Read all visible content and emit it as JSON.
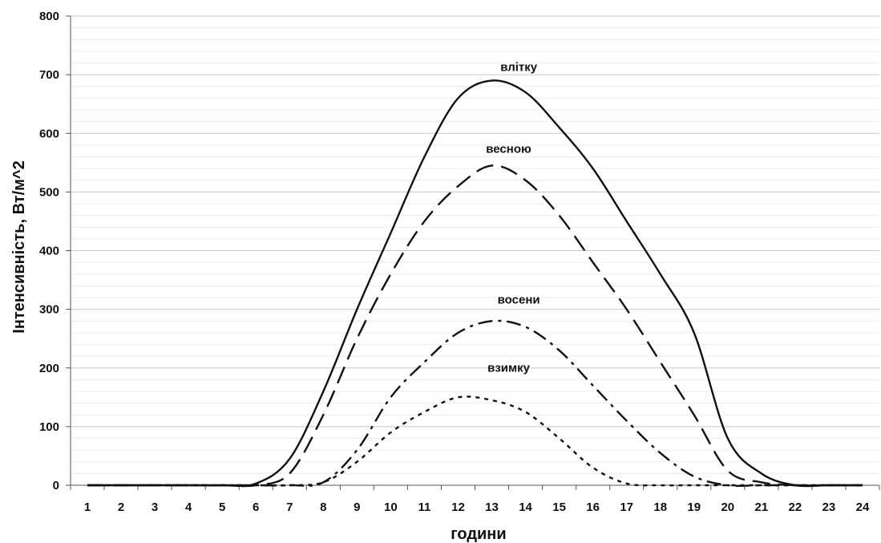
{
  "chart_data": {
    "type": "line",
    "title": "",
    "xlabel": "години",
    "ylabel": "Інтенсивність, Вт/м^2",
    "xlim": [
      0.5,
      24.5
    ],
    "ylim": [
      0,
      800
    ],
    "x_ticks": [
      "1",
      "2",
      "3",
      "4",
      "5",
      "6",
      "7",
      "8",
      "9",
      "10",
      "11",
      "12",
      "13",
      "14",
      "15",
      "16",
      "17",
      "18",
      "19",
      "20",
      "21",
      "22",
      "23",
      "24"
    ],
    "y_ticks": [
      "0",
      "100",
      "200",
      "300",
      "400",
      "500",
      "600",
      "700",
      "800"
    ],
    "grid": true,
    "legend": "none (series labelled on the plot)",
    "x": [
      1,
      2,
      3,
      4,
      5,
      6,
      7,
      8,
      9,
      10,
      11,
      12,
      13,
      14,
      15,
      16,
      17,
      18,
      19,
      20,
      21,
      22,
      23,
      24
    ],
    "series": [
      {
        "name": "влітку",
        "style": "solid",
        "values": [
          0,
          0,
          0,
          0,
          0,
          3,
          45,
          160,
          300,
          430,
          560,
          660,
          690,
          670,
          610,
          540,
          450,
          360,
          260,
          80,
          20,
          0,
          0,
          0
        ]
      },
      {
        "name": "весною",
        "style": "long-dash",
        "values": [
          0,
          0,
          0,
          0,
          0,
          0,
          20,
          120,
          250,
          360,
          450,
          510,
          545,
          520,
          460,
          380,
          300,
          210,
          120,
          25,
          5,
          0,
          0,
          0
        ]
      },
      {
        "name": "восени",
        "style": "dash-dot",
        "values": [
          0,
          0,
          0,
          0,
          0,
          0,
          0,
          5,
          60,
          150,
          210,
          260,
          280,
          270,
          230,
          170,
          110,
          55,
          15,
          0,
          0,
          0,
          0,
          0
        ]
      },
      {
        "name": "взимку",
        "style": "dotted",
        "values": [
          0,
          0,
          0,
          0,
          0,
          0,
          0,
          5,
          40,
          90,
          125,
          150,
          145,
          125,
          80,
          30,
          3,
          0,
          0,
          0,
          0,
          0,
          0,
          0
        ]
      }
    ]
  }
}
